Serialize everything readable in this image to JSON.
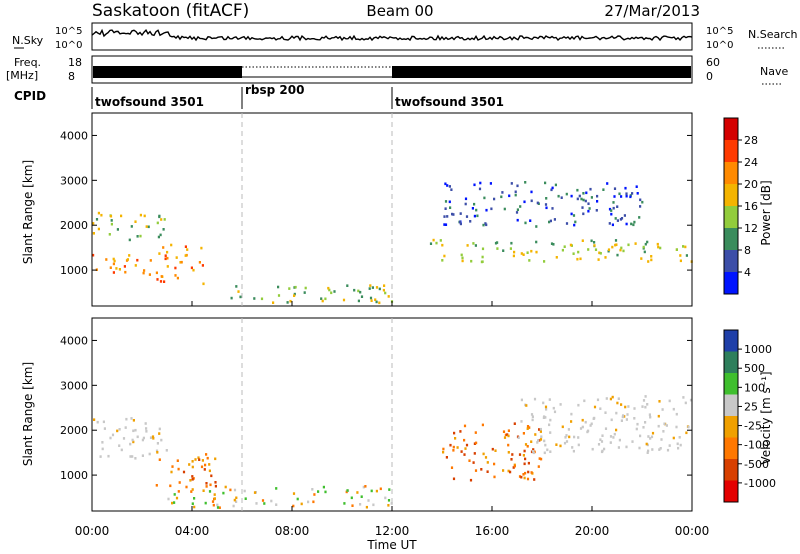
{
  "header": {
    "station": "Saskatoon (fitACF)",
    "beam": "Beam 00",
    "date": "27/Mar/2013"
  },
  "noise_panel": {
    "left_label": "N.Sky",
    "left_ticks": [
      "10^5",
      "10^0"
    ],
    "right_label": "N.Search",
    "right_ticks": [
      "10^5",
      "10^0"
    ]
  },
  "freq_panel": {
    "left_label_1": "Freq.",
    "left_label_2": "[MHz]",
    "left_ticks": [
      "18",
      "8"
    ],
    "right_label": "Nave",
    "right_ticks": [
      "60",
      "0"
    ]
  },
  "cpid_panel": {
    "label": "CPID",
    "segments": [
      {
        "name": "twofsound 3501",
        "start": 0,
        "end": 6
      },
      {
        "name": "rbsp 200",
        "start": 6,
        "end": 12
      },
      {
        "name": "twofsound 3501",
        "start": 12,
        "end": 24
      }
    ]
  },
  "power_panel": {
    "ylabel": "Slant Range [km]",
    "yticks": [
      "4000",
      "3000",
      "2000",
      "1000"
    ],
    "colorbar_label": "Power [dB]",
    "colorbar_ticks": [
      "28",
      "24",
      "20",
      "16",
      "12",
      "8",
      "4"
    ],
    "colors": [
      "#d40000",
      "#ff3a00",
      "#ff8a00",
      "#f4b400",
      "#92cc3c",
      "#3a8c5c",
      "#3c4ea8",
      "#0014ff"
    ]
  },
  "velocity_panel": {
    "ylabel": "Slant Range [km]",
    "yticks": [
      "4000",
      "3000",
      "2000",
      "1000"
    ],
    "colorbar_label": "Velocity [m s⁻¹]",
    "colorbar_ticks": [
      "1000",
      "500",
      "100",
      "25",
      "-25",
      "-100",
      "-500",
      "-1000"
    ],
    "colors": [
      "#1f3fa8",
      "#2e7f5c",
      "#3fbf2e",
      "#c8c8c8",
      "#f0a000",
      "#ff7800",
      "#d84000",
      "#e40000"
    ]
  },
  "time_axis": {
    "label": "Time UT",
    "ticks": [
      "00:00",
      "04:00",
      "08:00",
      "12:00",
      "16:00",
      "20:00",
      "00:00"
    ]
  },
  "chart_data": {
    "type": "heatmap",
    "x_range_hours": [
      0,
      24
    ],
    "y_range_km": [
      200,
      4500
    ],
    "mode_changes_hours": [
      6,
      12
    ],
    "scatter_regions": [
      {
        "panel": "power",
        "t0": 0,
        "t1": 2.5,
        "r0": 900,
        "r1": 1400,
        "level": "high"
      },
      {
        "panel": "power",
        "t0": 0,
        "t1": 3,
        "r0": 1700,
        "r1": 2300,
        "level": "medium"
      },
      {
        "panel": "power",
        "t0": 2.5,
        "t1": 4.5,
        "r0": 700,
        "r1": 1600,
        "level": "high"
      },
      {
        "panel": "power",
        "t0": 5,
        "t1": 12,
        "r0": 300,
        "r1": 700,
        "level": "medium"
      },
      {
        "panel": "power",
        "t0": 13.5,
        "t1": 24,
        "r0": 1200,
        "r1": 1700,
        "level": "medium"
      },
      {
        "panel": "power",
        "t0": 14,
        "t1": 22,
        "r0": 2000,
        "r1": 3000,
        "level": "low"
      },
      {
        "panel": "velocity",
        "t0": 0,
        "t1": 3,
        "r0": 1400,
        "r1": 2300,
        "level": "near-zero"
      },
      {
        "panel": "velocity",
        "t0": 2.5,
        "t1": 5,
        "r0": 700,
        "r1": 1500,
        "level": "negative"
      },
      {
        "panel": "velocity",
        "t0": 3,
        "t1": 12,
        "r0": 300,
        "r1": 800,
        "level": "mixed"
      },
      {
        "panel": "velocity",
        "t0": 14,
        "t1": 18,
        "r0": 900,
        "r1": 2200,
        "level": "negative"
      },
      {
        "panel": "velocity",
        "t0": 17,
        "t1": 24,
        "r0": 1500,
        "r1": 2800,
        "level": "near-zero"
      }
    ]
  }
}
